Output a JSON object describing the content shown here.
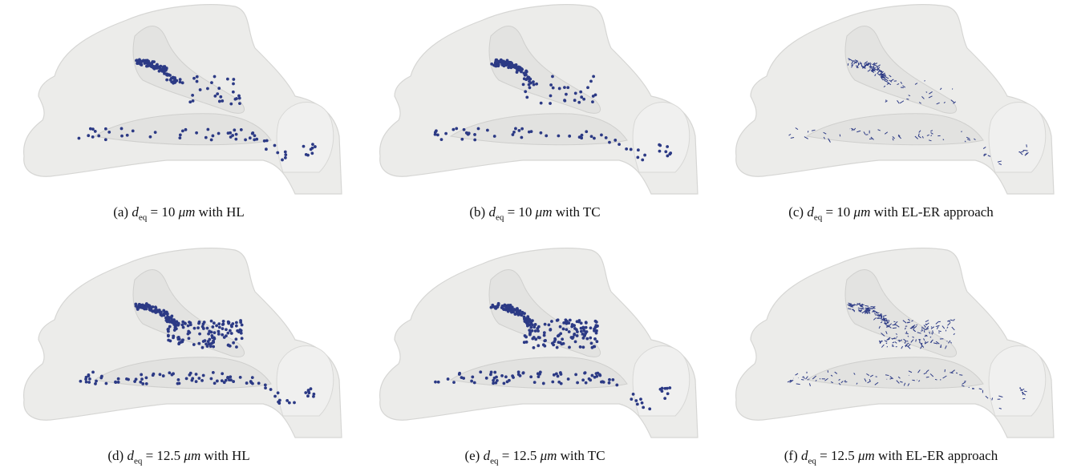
{
  "figure": {
    "panels": [
      {
        "label": "(a)",
        "variable": "d",
        "subscript": "eq",
        "relation": "= 10",
        "unit": "μm",
        "method": "with HL"
      },
      {
        "label": "(b)",
        "variable": "d",
        "subscript": "eq",
        "relation": "= 10",
        "unit": "μm",
        "method": "with TC"
      },
      {
        "label": "(c)",
        "variable": "d",
        "subscript": "eq",
        "relation": "= 10",
        "unit": "μm",
        "method": "with EL-ER approach"
      },
      {
        "label": "(d)",
        "variable": "d",
        "subscript": "eq",
        "relation": "= 12.5",
        "unit": "μm",
        "method": "with HL"
      },
      {
        "label": "(e)",
        "variable": "d",
        "subscript": "eq",
        "relation": "= 12.5",
        "unit": "μm",
        "method": "with TC"
      },
      {
        "label": "(f)",
        "variable": "d",
        "subscript": "eq",
        "relation": "= 12.5",
        "unit": "μm",
        "method": "with EL-ER approach"
      }
    ]
  }
}
